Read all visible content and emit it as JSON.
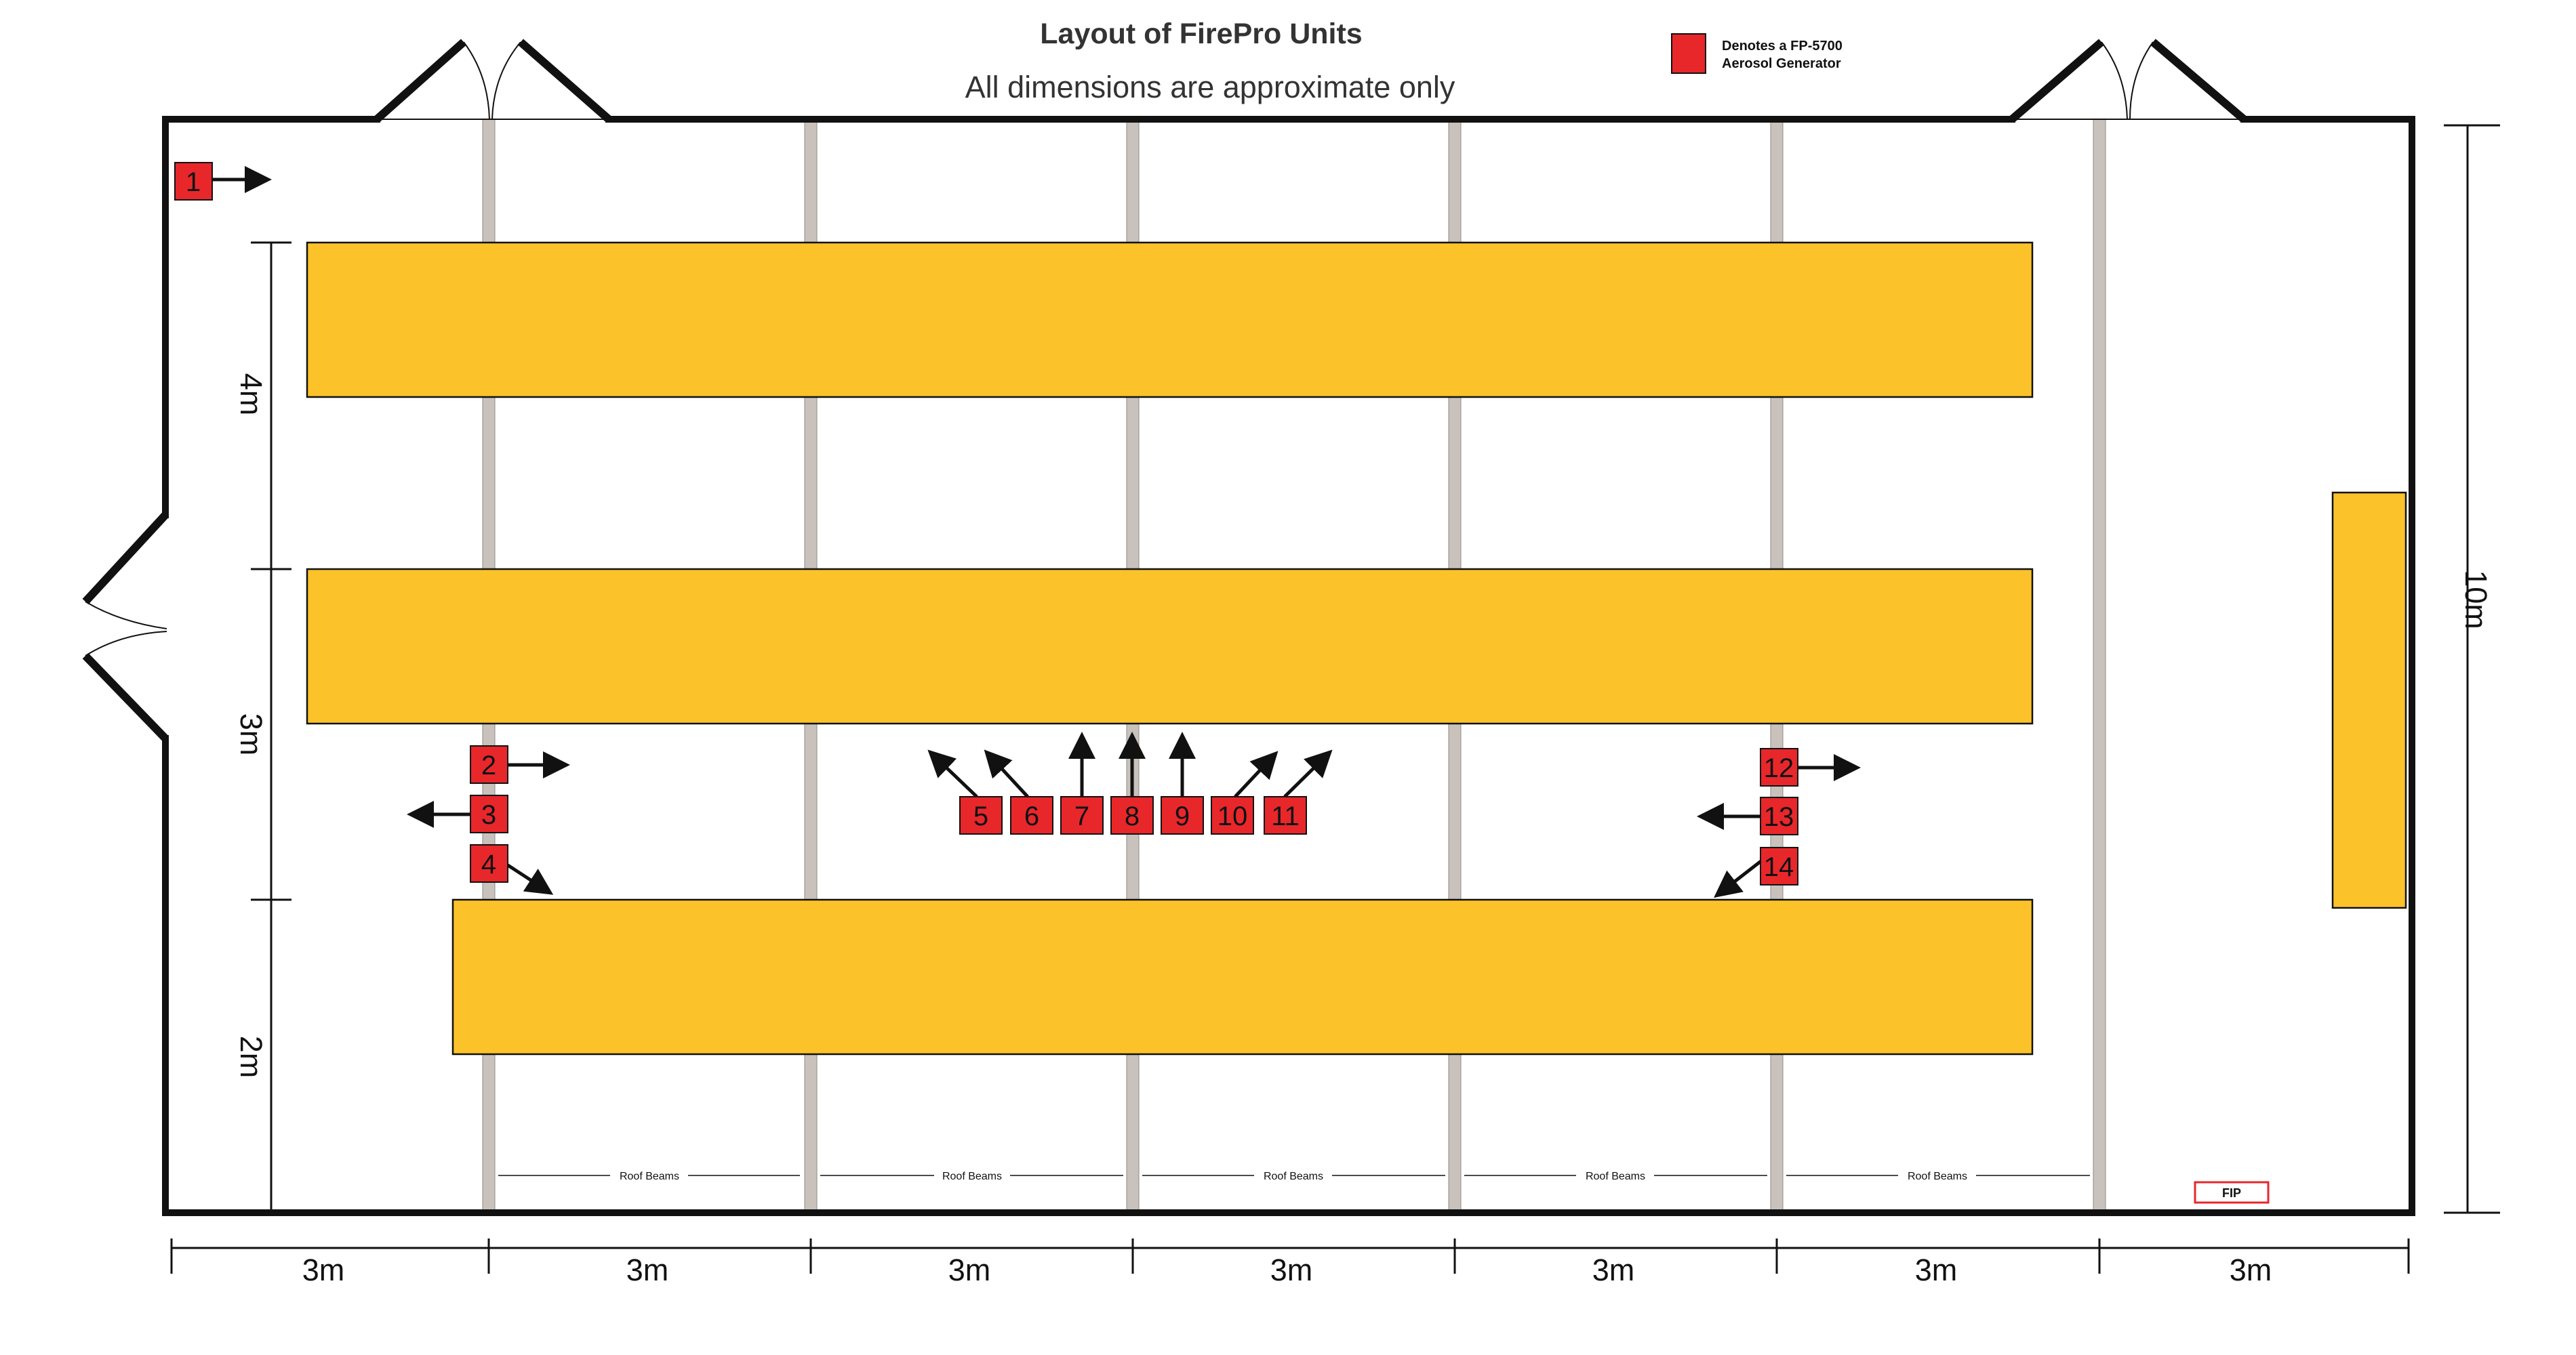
{
  "title": "Layout of FirePro Units",
  "subtitle": "All dimensions are approximate only",
  "legend": {
    "line1": "Denotes a FP-5700",
    "line2": "Aerosol Generator",
    "color": "#e8272b"
  },
  "colors": {
    "wall": "#111111",
    "shelf": "#fbc22a",
    "beam": "#c9c2bc",
    "unit": "#e8272b"
  },
  "units": [
    {
      "label": "1",
      "arrow": "right"
    },
    {
      "label": "2",
      "arrow": "right"
    },
    {
      "label": "3",
      "arrow": "left"
    },
    {
      "label": "4",
      "arrow": "down-right"
    },
    {
      "label": "5",
      "arrow": "up-left"
    },
    {
      "label": "6",
      "arrow": "up-left"
    },
    {
      "label": "7",
      "arrow": "up"
    },
    {
      "label": "8",
      "arrow": "up"
    },
    {
      "label": "9",
      "arrow": "up"
    },
    {
      "label": "10",
      "arrow": "up-right"
    },
    {
      "label": "11",
      "arrow": "up-right"
    },
    {
      "label": "12",
      "arrow": "right"
    },
    {
      "label": "13",
      "arrow": "left"
    },
    {
      "label": "14",
      "arrow": "down-left"
    }
  ],
  "dimensions": {
    "bottom": [
      "3m",
      "3m",
      "3m",
      "3m",
      "3m",
      "3m",
      "3m"
    ],
    "left": [
      "4m",
      "3m",
      "2m"
    ],
    "right": "10m"
  },
  "beam_label": "Roof Beams",
  "beam_labels": [
    "Roof Beams",
    "Roof Beams",
    "Roof Beams",
    "Roof Beams",
    "Roof Beams"
  ],
  "fip_label": "FIP"
}
